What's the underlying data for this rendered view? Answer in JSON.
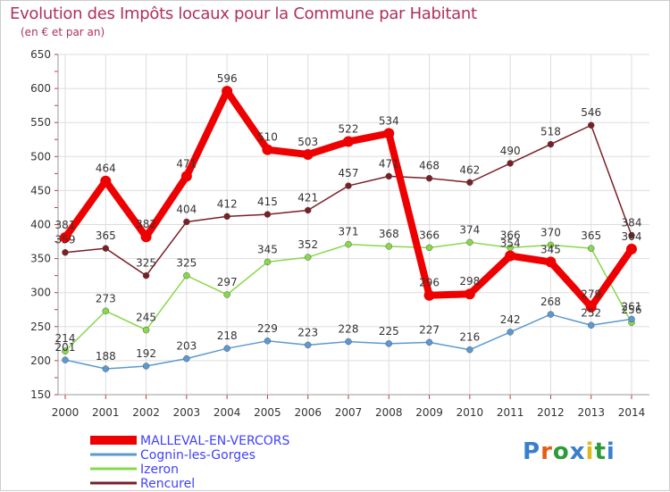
{
  "title": "Evolution des Impôts locaux pour la Commune par Habitant",
  "subtitle": "(en € et par an)",
  "logo": {
    "text": "Proxiti",
    "colors": [
      "#3a7fcb",
      "#e85c12",
      "#2e9a3a",
      "#3a7fcb",
      "#e2b81f",
      "#2e9a3a",
      "#3a7fcb"
    ]
  },
  "chart_data": {
    "type": "line",
    "x": [
      "2000",
      "2001",
      "2002",
      "2003",
      "2004",
      "2005",
      "2006",
      "2007",
      "2008",
      "2009",
      "2010",
      "2011",
      "2012",
      "2013",
      "2014"
    ],
    "ylim": [
      150,
      650
    ],
    "yticks": [
      150,
      200,
      250,
      300,
      350,
      400,
      450,
      500,
      550,
      600,
      650
    ],
    "grid": true,
    "legend_position": "bottom-left",
    "series": [
      {
        "name": "Rencurel",
        "color": "#7a1f26",
        "values": [
          359,
          365,
          325,
          404,
          412,
          415,
          421,
          457,
          471,
          468,
          462,
          490,
          518,
          546,
          384
        ]
      },
      {
        "name": "Izeron",
        "color": "#88d84a",
        "values": [
          214,
          273,
          245,
          325,
          297,
          345,
          352,
          371,
          368,
          366,
          374,
          366,
          370,
          365,
          256
        ]
      },
      {
        "name": "Cognin-les-Gorges",
        "color": "#5a9ad0",
        "values": [
          201,
          188,
          192,
          203,
          218,
          229,
          223,
          228,
          225,
          227,
          216,
          242,
          268,
          252,
          261
        ]
      },
      {
        "name": "MALLEVAL-EN-VERCORS",
        "color": "#ee0000",
        "values": [
          381,
          464,
          382,
          471,
          596,
          510,
          503,
          522,
          534,
          296,
          298,
          354,
          345,
          279,
          364
        ]
      }
    ],
    "legend": [
      {
        "label": "MALLEVAL-EN-VERCORS",
        "color": "#ee0000",
        "text_color": "#4040ff"
      },
      {
        "label": "Cognin-les-Gorges",
        "color": "#5a9ad0",
        "text_color": "#4040ff"
      },
      {
        "label": "Izeron",
        "color": "#88d84a",
        "text_color": "#4040ff"
      },
      {
        "label": "Rencurel",
        "color": "#7a1f26",
        "text_color": "#4040ff"
      }
    ]
  }
}
